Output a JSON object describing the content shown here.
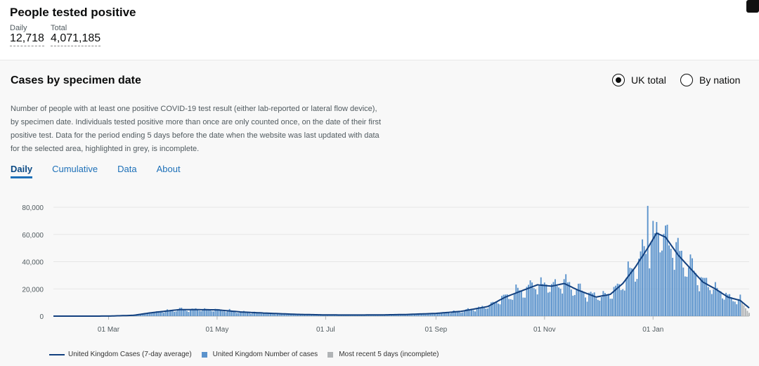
{
  "header": {
    "title": "People tested positive",
    "daily_label": "Daily",
    "daily_value": "12,718",
    "total_label": "Total",
    "total_value": "4,071,185"
  },
  "card": {
    "title": "Cases by specimen date",
    "radio_uk": "UK total",
    "radio_nation": "By nation",
    "description": "Number of people with at least one positive COVID-19 test result (either lab-reported or lateral flow device), by specimen date. Individuals tested positive more than once are only counted once, on the date of their first positive test. Data for the period ending 5 days before the date when the website was last updated with data for the selected area, highlighted in grey, is incomplete.",
    "tabs": [
      "Daily",
      "Cumulative",
      "Data",
      "About"
    ],
    "selected_radio": "UK total"
  },
  "colors": {
    "bar": "#5b93cc",
    "line": "#12407f",
    "incomplete": "#b1b4b6"
  },
  "chart_data": {
    "type": "bar",
    "ylim": [
      0,
      80000
    ],
    "yticks": [
      "80,000",
      "60,000",
      "40,000",
      "20,000",
      "0"
    ],
    "xticks": [
      "01 Mar",
      "01 May",
      "01 Jul",
      "01 Sep",
      "01 Nov",
      "01 Jan"
    ],
    "series": [
      {
        "name": "United Kingdom Cases (7-day average)",
        "type": "line"
      },
      {
        "name": "United Kingdom Number of cases",
        "type": "bar"
      },
      {
        "name": "Most recent 5 days (incomplete)",
        "type": "bar"
      }
    ],
    "daily_keypoints": [
      [
        "2020-01-30",
        0
      ],
      [
        "2020-03-01",
        30
      ],
      [
        "2020-03-15",
        600
      ],
      [
        "2020-03-25",
        2500
      ],
      [
        "2020-04-10",
        4800
      ],
      [
        "2020-04-25",
        4700
      ],
      [
        "2020-05-01",
        4600
      ],
      [
        "2020-05-15",
        3000
      ],
      [
        "2020-06-01",
        2000
      ],
      [
        "2020-06-15",
        1300
      ],
      [
        "2020-07-01",
        900
      ],
      [
        "2020-07-15",
        800
      ],
      [
        "2020-08-01",
        900
      ],
      [
        "2020-08-15",
        1200
      ],
      [
        "2020-09-01",
        2000
      ],
      [
        "2020-09-15",
        3500
      ],
      [
        "2020-09-30",
        7000
      ],
      [
        "2020-10-10",
        14000
      ],
      [
        "2020-10-20",
        19000
      ],
      [
        "2020-10-28",
        23000
      ],
      [
        "2020-11-05",
        22000
      ],
      [
        "2020-11-12",
        24000
      ],
      [
        "2020-11-20",
        19000
      ],
      [
        "2020-11-30",
        14000
      ],
      [
        "2020-12-08",
        16000
      ],
      [
        "2020-12-15",
        24000
      ],
      [
        "2020-12-22",
        36000
      ],
      [
        "2020-12-29",
        50000
      ],
      [
        "2021-01-03",
        61000
      ],
      [
        "2021-01-08",
        58000
      ],
      [
        "2021-01-15",
        45000
      ],
      [
        "2021-01-22",
        35000
      ],
      [
        "2021-01-29",
        25000
      ],
      [
        "2021-02-05",
        20000
      ],
      [
        "2021-02-12",
        14000
      ],
      [
        "2021-02-19",
        11500
      ],
      [
        "2021-02-24",
        6000
      ]
    ],
    "incomplete_from": "2021-02-20"
  },
  "legend": {
    "line_label": "United Kingdom Cases (7-day average)",
    "bar_label": "United Kingdom Number of cases",
    "incomplete_label": "Most recent 5 days (incomplete)"
  }
}
